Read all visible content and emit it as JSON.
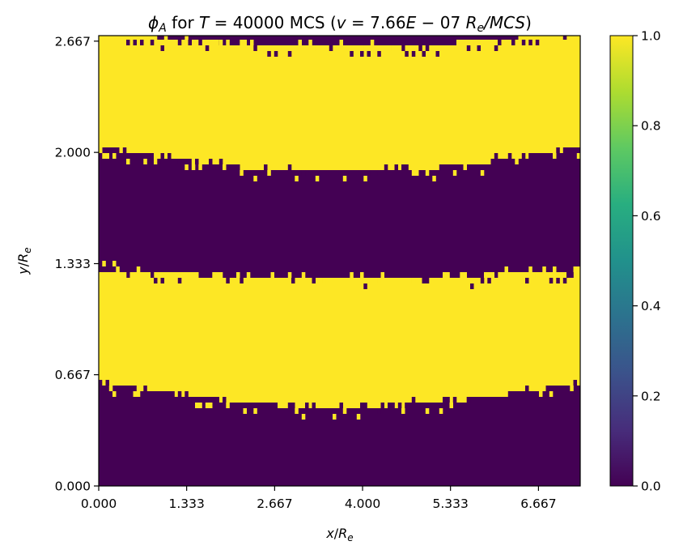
{
  "chart_data": {
    "type": "heatmap",
    "title": "ϕ_A for T = 40000 MCS (v = 7.66E − 07 R_e/MCS)",
    "title_parts": {
      "phi_symbol": "ϕ",
      "phi_sub": "A",
      "for_text": " for ",
      "T_symbol": "T",
      "eq_value": " = 40000 MCS (",
      "v_symbol": "v",
      "v_value": " = 7.66",
      "E_symbol": "E",
      "exp_text": " − 07 ",
      "Re_symbol": "R",
      "Re_sub": "e",
      "slash": "/",
      "mcs_italic": "MCS",
      "close": ")"
    },
    "xlabel": {
      "main": "x",
      "sep": "/",
      "R": "R",
      "sub": "e"
    },
    "ylabel": {
      "main": "y",
      "sep": "/",
      "R": "R",
      "sub": "e"
    },
    "xlim": [
      0.0,
      7.3
    ],
    "ylim": [
      0.0,
      2.7
    ],
    "x_ticks": [
      {
        "value": 0.0,
        "label": "0.000"
      },
      {
        "value": 1.333,
        "label": "1.333"
      },
      {
        "value": 2.667,
        "label": "2.667"
      },
      {
        "value": 4.0,
        "label": "4.000"
      },
      {
        "value": 5.333,
        "label": "5.333"
      },
      {
        "value": 6.667,
        "label": "6.667"
      }
    ],
    "y_ticks": [
      {
        "value": 0.0,
        "label": "0.000"
      },
      {
        "value": 0.667,
        "label": "0.667"
      },
      {
        "value": 1.333,
        "label": "1.333"
      },
      {
        "value": 2.0,
        "label": "2.000"
      },
      {
        "value": 2.667,
        "label": "2.667"
      }
    ],
    "colorbar": {
      "range": [
        0.0,
        1.0
      ],
      "ticks": [
        {
          "value": 0.0,
          "label": "0.0"
        },
        {
          "value": 0.2,
          "label": "0.2"
        },
        {
          "value": 0.4,
          "label": "0.4"
        },
        {
          "value": 0.6,
          "label": "0.6"
        },
        {
          "value": 0.8,
          "label": "0.8"
        },
        {
          "value": 1.0,
          "label": "1.0"
        }
      ],
      "colormap": "viridis"
    },
    "value_low_color": "#440154",
    "value_high_color": "#fde725",
    "bands_phi_A_equals_1": [
      {
        "y_lower_edge": 0.62,
        "y_lower_center": 0.47,
        "y_upper_edge": 1.3,
        "y_upper_center": 1.24
      },
      {
        "y_lower_edge": 2.03,
        "y_lower_center": 1.88,
        "y_upper_edge": 2.73,
        "y_upper_center": 2.63
      }
    ],
    "band_shape": "edges curve toward band centre near the middle of the domain (sagging downward)",
    "grid": false
  }
}
